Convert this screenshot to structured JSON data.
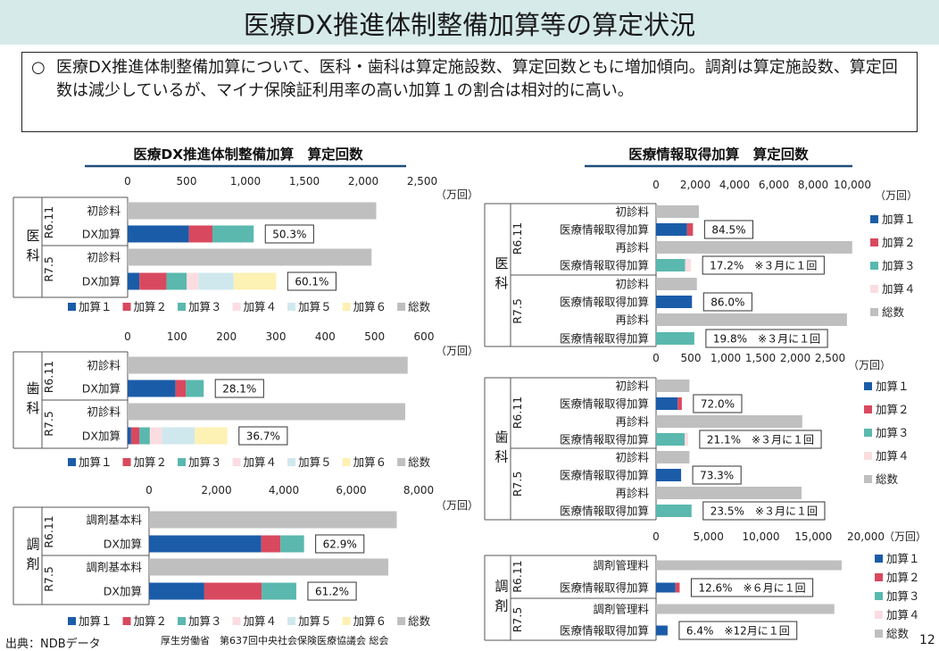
{
  "page": {
    "title": "医療DX推進体制整備加算等の算定状況",
    "summary_bullet": "○",
    "summary": "医療DX推進体制整備加算について、医科・歯科は算定施設数、算定回数ともに増加傾向。調剤は算定施設数、算定回数は減少しているが、マイナ保険証利用率の高い加算１の割合は相対的に高い。",
    "source": "出典：NDBデータ",
    "footer": "厚生労働省　第637回中央社会保険医療協議会 総会",
    "page_number": "12"
  },
  "colors": {
    "加算1": "#1b5ca8",
    "加算2": "#d8495f",
    "加算3": "#5ab8ae",
    "加算4": "#fbdde1",
    "加算5": "#cfe8ee",
    "加算6": "#fdf1b3",
    "総数": "#bfbfbf",
    "header_bg": "#d6eaea",
    "underline": "#1f4e79"
  },
  "chart_data": [
    {
      "id": "dx-ika",
      "type": "bar",
      "orientation": "horizontal",
      "stacked": true,
      "title": "医療DX推進体制整備加算　算定回数",
      "section": "医科",
      "unit": "（万回）",
      "xlim": [
        0,
        2500
      ],
      "ticks": [
        "0",
        "500",
        "1,000",
        "1,500",
        "2,000",
        "2,500"
      ],
      "legend": [
        "加算１",
        "加算２",
        "加算３",
        "加算４",
        "加算５",
        "加算６",
        "総数"
      ],
      "legend_keys": [
        "加算1",
        "加算2",
        "加算3",
        "加算4",
        "加算5",
        "加算6",
        "総数"
      ],
      "groups": [
        {
          "label": "R6.11",
          "rows": [
            {
              "label": "初診料",
              "segments": [
                {
                  "series": "総数",
                  "value": 2110
                }
              ]
            },
            {
              "label": "DX加算",
              "segments": [
                {
                  "series": "加算1",
                  "value": 520
                },
                {
                  "series": "加算2",
                  "value": 200
                },
                {
                  "series": "加算3",
                  "value": 350
                }
              ],
              "annotation": "50.3%"
            }
          ]
        },
        {
          "label": "R7.5",
          "rows": [
            {
              "label": "初診料",
              "segments": [
                {
                  "series": "総数",
                  "value": 2070
                }
              ]
            },
            {
              "label": "DX加算",
              "segments": [
                {
                  "series": "加算1",
                  "value": 100
                },
                {
                  "series": "加算2",
                  "value": 230
                },
                {
                  "series": "加算3",
                  "value": 170
                },
                {
                  "series": "加算4",
                  "value": 100
                },
                {
                  "series": "加算5",
                  "value": 300
                },
                {
                  "series": "加算6",
                  "value": 360
                }
              ],
              "annotation": "60.1%"
            }
          ]
        }
      ]
    },
    {
      "id": "dx-shika",
      "type": "bar",
      "orientation": "horizontal",
      "stacked": true,
      "section": "歯科",
      "unit": "（万回）",
      "xlim": [
        0,
        600
      ],
      "ticks": [
        "0",
        "100",
        "200",
        "300",
        "400",
        "500",
        "600"
      ],
      "legend": [
        "加算１",
        "加算２",
        "加算３",
        "加算４",
        "加算５",
        "加算６",
        "総数"
      ],
      "legend_keys": [
        "加算1",
        "加算2",
        "加算3",
        "加算4",
        "加算5",
        "加算6",
        "総数"
      ],
      "groups": [
        {
          "label": "R6.11",
          "rows": [
            {
              "label": "初診料",
              "segments": [
                {
                  "series": "総数",
                  "value": 567
                }
              ]
            },
            {
              "label": "DX加算",
              "segments": [
                {
                  "series": "加算1",
                  "value": 97
                },
                {
                  "series": "加算2",
                  "value": 21
                },
                {
                  "series": "加算3",
                  "value": 36
                }
              ],
              "annotation": "28.1%"
            }
          ]
        },
        {
          "label": "R7.5",
          "rows": [
            {
              "label": "初診料",
              "segments": [
                {
                  "series": "総数",
                  "value": 562
                }
              ]
            },
            {
              "label": "DX加算",
              "segments": [
                {
                  "series": "加算1",
                  "value": 7
                },
                {
                  "series": "加算2",
                  "value": 17
                },
                {
                  "series": "加算3",
                  "value": 21
                },
                {
                  "series": "加算4",
                  "value": 24
                },
                {
                  "series": "加算5",
                  "value": 67
                },
                {
                  "series": "加算6",
                  "value": 66
                }
              ],
              "annotation": "36.7%"
            }
          ]
        }
      ]
    },
    {
      "id": "dx-chozai",
      "type": "bar",
      "orientation": "horizontal",
      "stacked": true,
      "section": "調剤",
      "unit": "（万回）",
      "xlim": [
        0,
        8000
      ],
      "ticks": [
        "0",
        "2,000",
        "4,000",
        "6,000",
        "8,000"
      ],
      "legend": [
        "加算１",
        "加算２",
        "加算３",
        "加算４",
        "加算５",
        "加算６",
        "総数"
      ],
      "legend_keys": [
        "加算1",
        "加算2",
        "加算3",
        "加算4",
        "加算5",
        "加算6",
        "総数"
      ],
      "groups": [
        {
          "label": "R6.11",
          "rows": [
            {
              "label": "調剤基本料",
              "segments": [
                {
                  "series": "総数",
                  "value": 7350
                }
              ]
            },
            {
              "label": "DX加算",
              "segments": [
                {
                  "series": "加算1",
                  "value": 3330
                },
                {
                  "series": "加算2",
                  "value": 570
                },
                {
                  "series": "加算3",
                  "value": 700
                }
              ],
              "annotation": "62.9%"
            }
          ]
        },
        {
          "label": "R7.5",
          "rows": [
            {
              "label": "調剤基本料",
              "segments": [
                {
                  "series": "総数",
                  "value": 7100
                }
              ]
            },
            {
              "label": "DX加算",
              "segments": [
                {
                  "series": "加算1",
                  "value": 1640
                },
                {
                  "series": "加算2",
                  "value": 1700
                },
                {
                  "series": "加算3",
                  "value": 1030
                }
              ],
              "annotation": "61.2%"
            }
          ]
        }
      ]
    },
    {
      "id": "info-ika",
      "type": "bar",
      "orientation": "horizontal",
      "stacked": true,
      "title": "医療情報取得加算　算定回数",
      "section": "医科",
      "unit": "（万回）",
      "xlim": [
        0,
        10000
      ],
      "ticks": [
        "0",
        "2,000",
        "4,000",
        "6,000",
        "8,000",
        "10,000"
      ],
      "legend": [
        "加算１",
        "加算２",
        "加算３",
        "加算４",
        "総数"
      ],
      "legend_keys": [
        "加算1",
        "加算2",
        "加算3",
        "加算4",
        "総数"
      ],
      "groups": [
        {
          "label": "R6.11",
          "rows": [
            {
              "label": "初診料",
              "segments": [
                {
                  "series": "総数",
                  "value": 2180
                }
              ]
            },
            {
              "label": "医療情報取得加算",
              "segments": [
                {
                  "series": "加算1",
                  "value": 1580
                },
                {
                  "series": "加算2",
                  "value": 300
                }
              ],
              "annotation": "84.5%"
            },
            {
              "label": "再診料",
              "segments": [
                {
                  "series": "総数",
                  "value": 9990
                }
              ]
            },
            {
              "label": "医療情報取得加算",
              "segments": [
                {
                  "series": "加算3",
                  "value": 1480
                },
                {
                  "series": "加算4",
                  "value": 300
                }
              ],
              "annotation": "17.2%　※３月に１回"
            }
          ]
        },
        {
          "label": "R7.5",
          "rows": [
            {
              "label": "初診料",
              "segments": [
                {
                  "series": "総数",
                  "value": 2080
                }
              ]
            },
            {
              "label": "医療情報取得加算",
              "segments": [
                {
                  "series": "加算1",
                  "value": 1830
                }
              ],
              "annotation": "86.0%"
            },
            {
              "label": "再診料",
              "segments": [
                {
                  "series": "総数",
                  "value": 9720
                }
              ]
            },
            {
              "label": "医療情報取得加算",
              "segments": [
                {
                  "series": "加算3",
                  "value": 1950
                }
              ],
              "annotation": "19.8%　※３月に１回"
            }
          ]
        }
      ]
    },
    {
      "id": "info-shika",
      "type": "bar",
      "orientation": "horizontal",
      "stacked": true,
      "section": "歯科",
      "unit": "（万回）",
      "xlim": [
        0,
        2500
      ],
      "ticks": [
        "0",
        "500",
        "1,000",
        "1,500",
        "2,000",
        "2,500"
      ],
      "legend": [
        "加算１",
        "加算２",
        "加算３",
        "加算４",
        "総数"
      ],
      "legend_keys": [
        "加算1",
        "加算2",
        "加算3",
        "加算4",
        "総数"
      ],
      "groups": [
        {
          "label": "R6.11",
          "rows": [
            {
              "label": "初診料",
              "segments": [
                {
                  "series": "総数",
                  "value": 480
                }
              ]
            },
            {
              "label": "医療情報取得加算",
              "segments": [
                {
                  "series": "加算1",
                  "value": 310
                },
                {
                  "series": "加算2",
                  "value": 60
                }
              ],
              "annotation": "72.0%"
            },
            {
              "label": "再診料",
              "segments": [
                {
                  "series": "総数",
                  "value": 2100
                }
              ]
            },
            {
              "label": "医療情報取得加算",
              "segments": [
                {
                  "series": "加算3",
                  "value": 410
                },
                {
                  "series": "加算4",
                  "value": 50
                }
              ],
              "annotation": "21.1%　※３月に１回"
            }
          ]
        },
        {
          "label": "R7.5",
          "rows": [
            {
              "label": "初診料",
              "segments": [
                {
                  "series": "総数",
                  "value": 480
                }
              ]
            },
            {
              "label": "医療情報取得加算",
              "segments": [
                {
                  "series": "加算1",
                  "value": 360
                }
              ],
              "annotation": "73.3%"
            },
            {
              "label": "再診料",
              "segments": [
                {
                  "series": "総数",
                  "value": 2090
                }
              ]
            },
            {
              "label": "医療情報取得加算",
              "segments": [
                {
                  "series": "加算3",
                  "value": 510
                }
              ],
              "annotation": "23.5%　※３月に１回"
            }
          ]
        }
      ]
    },
    {
      "id": "info-chozai",
      "type": "bar",
      "orientation": "horizontal",
      "stacked": true,
      "section": "調剤",
      "unit": "（万回）",
      "xlim": [
        0,
        20000
      ],
      "ticks": [
        "0",
        "5,000",
        "10,000",
        "15,000",
        "20,000"
      ],
      "legend": [
        "加算１",
        "加算２",
        "加算３",
        "加算４",
        "総数"
      ],
      "legend_keys": [
        "加算1",
        "加算2",
        "加算3",
        "加算4",
        "総数"
      ],
      "groups": [
        {
          "label": "R6.11",
          "rows": [
            {
              "label": "調剤管理料",
              "segments": [
                {
                  "series": "総数",
                  "value": 17700
                }
              ]
            },
            {
              "label": "医療情報取得加算",
              "segments": [
                {
                  "series": "加算1",
                  "value": 1850
                },
                {
                  "series": "加算2",
                  "value": 400
                }
              ],
              "annotation": "12.6%　※６月に１回"
            }
          ]
        },
        {
          "label": "R7.5",
          "rows": [
            {
              "label": "調剤管理料",
              "segments": [
                {
                  "series": "総数",
                  "value": 17000
                }
              ]
            },
            {
              "label": "医療情報取得加算",
              "segments": [
                {
                  "series": "加算1",
                  "value": 1100
                }
              ],
              "annotation": "6.4%　※12月に１回"
            }
          ]
        }
      ]
    }
  ]
}
